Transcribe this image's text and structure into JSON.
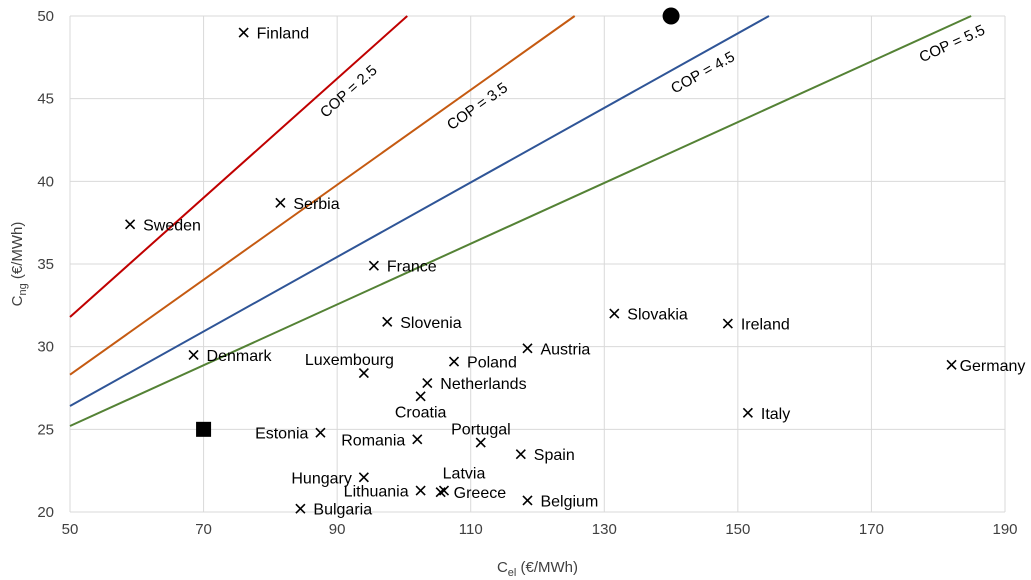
{
  "chart_data": {
    "type": "scatter",
    "xlabel": {
      "main": "C",
      "sub": "el",
      "rest": " (€/MWh)"
    },
    "ylabel": {
      "main": "C",
      "sub": "ng",
      "rest": " (€/MWh)"
    },
    "xlim": [
      50,
      190
    ],
    "ylim": [
      20,
      50
    ],
    "xticks": [
      50,
      70,
      90,
      110,
      130,
      150,
      170,
      190
    ],
    "yticks": [
      20,
      25,
      30,
      35,
      40,
      45,
      50
    ],
    "grid": true,
    "points": [
      {
        "label": "Finland",
        "x": 76,
        "y": 49
      },
      {
        "label": "Sweden",
        "x": 59,
        "y": 37.4
      },
      {
        "label": "Serbia",
        "x": 81.5,
        "y": 38.7
      },
      {
        "label": "France",
        "x": 95.5,
        "y": 34.9
      },
      {
        "label": "Slovenia",
        "x": 97.5,
        "y": 31.5
      },
      {
        "label": "Slovakia",
        "x": 131.5,
        "y": 32
      },
      {
        "label": "Ireland",
        "x": 148.5,
        "y": 31.4
      },
      {
        "label": "Austria",
        "x": 118.5,
        "y": 29.9
      },
      {
        "label": "Denmark",
        "x": 68.5,
        "y": 29.5
      },
      {
        "label": "Poland",
        "x": 107.5,
        "y": 29.1
      },
      {
        "label": "Germany",
        "x": 182,
        "y": 28.9
      },
      {
        "label": "Luxembourg",
        "x": 94,
        "y": 28.4
      },
      {
        "label": "Netherlands",
        "x": 103.5,
        "y": 27.8
      },
      {
        "label": "Croatia",
        "x": 102.5,
        "y": 27
      },
      {
        "label": "Italy",
        "x": 151.5,
        "y": 26
      },
      {
        "label": "Estonia",
        "x": 87.5,
        "y": 24.8
      },
      {
        "label": "Romania",
        "x": 102,
        "y": 24.4
      },
      {
        "label": "Portugal",
        "x": 111.5,
        "y": 24.2
      },
      {
        "label": "Spain",
        "x": 117.5,
        "y": 23.5
      },
      {
        "label": "Hungary",
        "x": 94,
        "y": 22.1
      },
      {
        "label": "Latvia",
        "x": 106,
        "y": 21.3
      },
      {
        "label": "Lithuania",
        "x": 102.5,
        "y": 21.3
      },
      {
        "label": "Greece",
        "x": 105.5,
        "y": 21.2
      },
      {
        "label": "Belgium",
        "x": 118.5,
        "y": 20.7
      },
      {
        "label": "Bulgaria",
        "x": 84.5,
        "y": 20.2
      }
    ],
    "special_points": [
      {
        "marker": "circle",
        "x": 140,
        "y": 50
      },
      {
        "marker": "square",
        "x": 70,
        "y": 25
      }
    ],
    "series": [
      {
        "name": "COP = 2.5",
        "color": "#c00000",
        "slope": 0.3605,
        "intercept": 13.77
      },
      {
        "name": "COP = 3.5",
        "color": "#c55a11",
        "slope": 0.2871,
        "intercept": 13.95
      },
      {
        "name": "COP = 4.5",
        "color": "#2f5597",
        "slope": 0.2254,
        "intercept": 15.14
      },
      {
        "name": "COP = 5.5",
        "color": "#548235",
        "slope": 0.1838,
        "intercept": 16.01
      }
    ]
  }
}
